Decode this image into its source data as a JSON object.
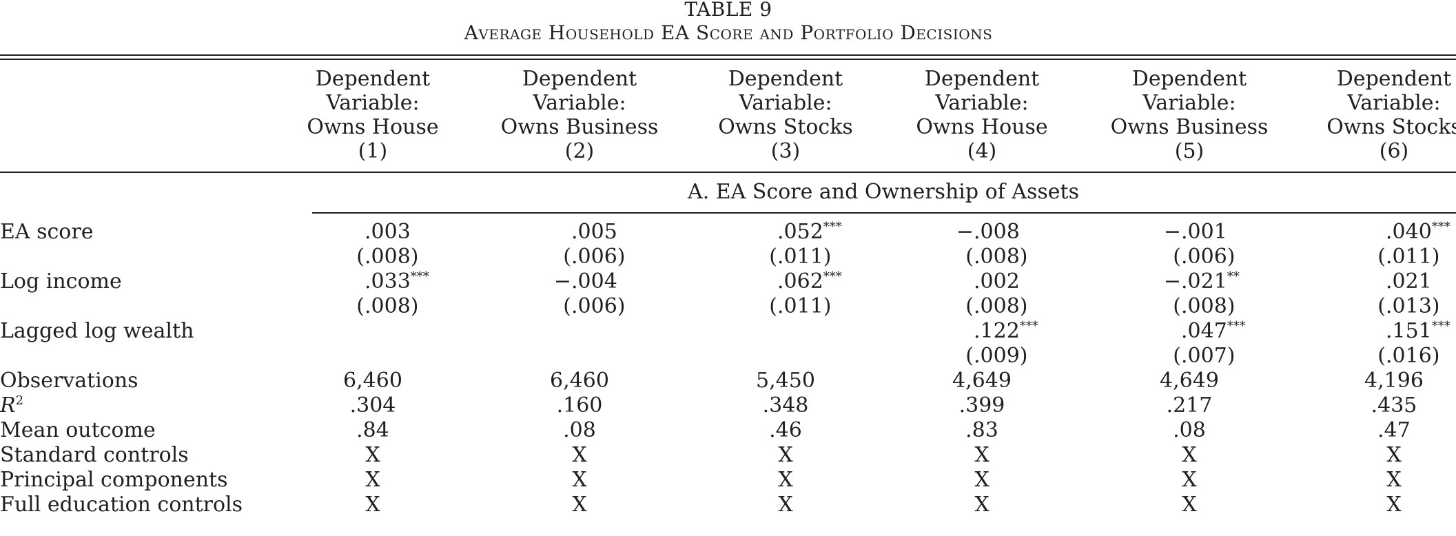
{
  "table": {
    "title": "TABLE 9",
    "subtitle": "Average Household EA Score and Portfolio Decisions",
    "columns": [
      {
        "line1": "Dependent",
        "line2": "Variable:",
        "line3": "Owns House",
        "num": "(1)"
      },
      {
        "line1": "Dependent",
        "line2": "Variable:",
        "line3": "Owns Business",
        "num": "(2)"
      },
      {
        "line1": "Dependent",
        "line2": "Variable:",
        "line3": "Owns Stocks",
        "num": "(3)"
      },
      {
        "line1": "Dependent",
        "line2": "Variable:",
        "line3": "Owns House",
        "num": "(4)"
      },
      {
        "line1": "Dependent",
        "line2": "Variable:",
        "line3": "Owns Business",
        "num": "(5)"
      },
      {
        "line1": "Dependent",
        "line2": "Variable:",
        "line3": "Owns Stocks",
        "num": "(6)"
      }
    ],
    "panel_title": "A. EA Score and Ownership of Assets",
    "rows": [
      {
        "label": "EA score",
        "values": [
          ".003",
          ".005",
          ".052***",
          "−.008",
          "−.001",
          ".040***"
        ],
        "se": [
          "(.008)",
          "(.006)",
          "(.011)",
          "(.008)",
          "(.006)",
          "(.011)"
        ]
      },
      {
        "label": "Log income",
        "values": [
          ".033***",
          "−.004",
          ".062***",
          ".002",
          "−.021**",
          ".021"
        ],
        "se": [
          "(.008)",
          "(.006)",
          "(.011)",
          "(.008)",
          "(.008)",
          "(.013)"
        ]
      },
      {
        "label": "Lagged log wealth",
        "values": [
          "",
          "",
          "",
          ".122***",
          ".047***",
          ".151***"
        ],
        "se": [
          "",
          "",
          "",
          "(.009)",
          "(.007)",
          "(.016)"
        ]
      }
    ],
    "stats": [
      {
        "label": "Observations",
        "values": [
          "6,460",
          "6,460",
          "5,450",
          "4,649",
          "4,649",
          "4,196"
        ]
      },
      {
        "label_main": "R",
        "label_sup": "2",
        "values": [
          ".304",
          ".160",
          ".348",
          ".399",
          ".217",
          ".435"
        ]
      },
      {
        "label": "Mean outcome",
        "values": [
          ".84",
          ".08",
          ".46",
          ".83",
          ".08",
          ".47"
        ]
      },
      {
        "label": "Standard controls",
        "values": [
          "X",
          "X",
          "X",
          "X",
          "X",
          "X"
        ]
      },
      {
        "label": "Principal components",
        "values": [
          "X",
          "X",
          "X",
          "X",
          "X",
          "X"
        ]
      },
      {
        "label": "Full education controls",
        "values": [
          "X",
          "X",
          "X",
          "X",
          "X",
          "X"
        ]
      }
    ]
  }
}
